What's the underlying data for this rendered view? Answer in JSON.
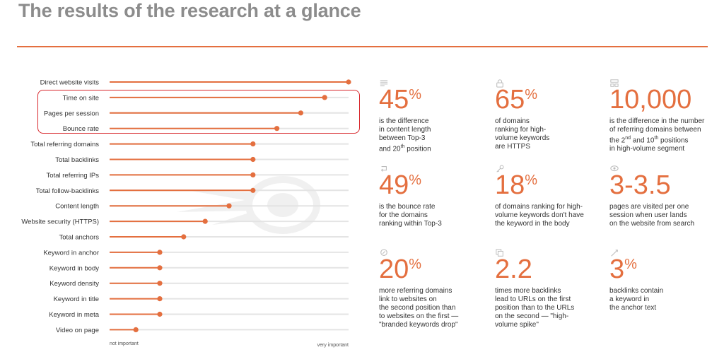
{
  "title": "The results of the research at a glance",
  "colors": {
    "accent": "#e46f3f",
    "track": "#e4e4e4",
    "highlight": "#d8262b",
    "title": "#8c8c8c"
  },
  "chart_data": {
    "type": "lollipop",
    "title": "",
    "x_axis": {
      "min_label": "not important",
      "max_label": "very important",
      "range": [
        0,
        1
      ]
    },
    "categories": [
      "Direct website visits",
      "Time on site",
      "Pages per session",
      "Bounce rate",
      "Total referring domains",
      "Total backlinks",
      "Total referring IPs",
      "Total follow-backlinks",
      "Content length",
      "Website security (HTTPS)",
      "Total anchors",
      "Keyword in anchor",
      "Keyword in body",
      "Keyword density",
      "Keyword in title",
      "Keyword in meta",
      "Video on page"
    ],
    "values": [
      1.0,
      0.9,
      0.8,
      0.7,
      0.6,
      0.6,
      0.6,
      0.6,
      0.5,
      0.4,
      0.31,
      0.21,
      0.21,
      0.21,
      0.21,
      0.21,
      0.11
    ],
    "highlighted": [
      "Time on site",
      "Pages per session",
      "Bounce rate"
    ]
  },
  "stats": [
    {
      "icon": "text-lines-icon",
      "value": "45",
      "unit": "%",
      "desc": "is the difference in content length between Top-3 and 20th position"
    },
    {
      "icon": "lock-icon",
      "value": "65",
      "unit": "%",
      "desc": "of domains ranking for high-volume keywords are HTTPS"
    },
    {
      "icon": "network-icon",
      "value": "10,000",
      "unit": "",
      "desc": "is the difference in the number of referring domains between the 2nd and 10th positions in high-volume segment"
    },
    {
      "icon": "return-arrow-icon",
      "value": "49",
      "unit": "%",
      "desc": "is the bounce rate for the domains ranking within Top-3"
    },
    {
      "icon": "key-icon",
      "value": "18",
      "unit": "%",
      "desc": "of domains ranking for high-volume keywords don't have the keyword in the body"
    },
    {
      "icon": "eye-icon",
      "value": "3-3.5",
      "unit": "",
      "desc": "pages are visited per one session when user lands on the website from search"
    },
    {
      "icon": "link-icon",
      "value": "20",
      "unit": "%",
      "desc": "more referring domains link to websites on the second position than to websites on the first — \"branded keywords drop\""
    },
    {
      "icon": "pages-icon",
      "value": "2.2",
      "unit": "",
      "desc": "times more backlinks lead to URLs on the first position than to the URLs on the second — \"high-volume spike\""
    },
    {
      "icon": "anchor-icon",
      "value": "3",
      "unit": "%",
      "desc": "backlinks contain a keyword in the anchor text"
    }
  ],
  "stat_desc_lines": [
    [
      "is the difference",
      "in content length",
      "between Top-3",
      "and 20th position"
    ],
    [
      "of domains",
      "ranking for high-",
      "volume keywords",
      "are HTTPS"
    ],
    [
      "is the difference in the number",
      "of referring domains between",
      "the 2nd and 10th positions",
      "in high-volume segment"
    ],
    [
      "is the bounce rate",
      "for the domains",
      "ranking within Top-3"
    ],
    [
      "of domains ranking for high-",
      "volume keywords don't have",
      "the keyword in the body"
    ],
    [
      "pages are visited per one",
      "session when user lands",
      "on the website from search"
    ],
    [
      "more referring domains",
      "link to websites on",
      "the second position than",
      "to websites on the first —",
      "\"branded keywords drop\""
    ],
    [
      "times more backlinks",
      "lead to URLs on the first",
      "position than to the URLs",
      "on the second — \"high-",
      "volume spike\""
    ],
    [
      "backlinks contain",
      "a keyword in",
      "the anchor text"
    ]
  ]
}
